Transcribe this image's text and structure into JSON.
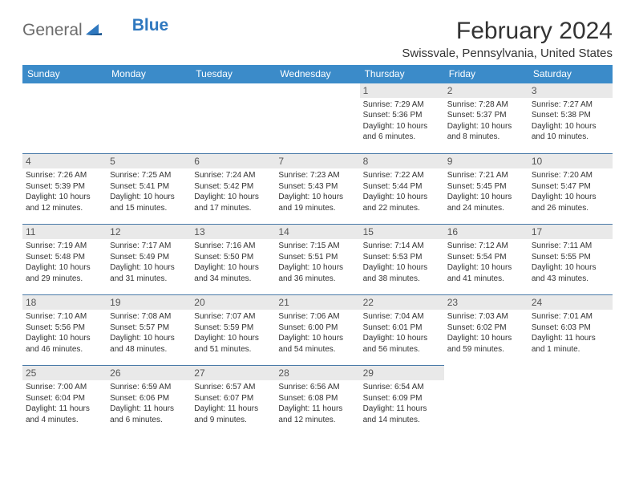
{
  "logo": {
    "part1": "General",
    "part2": "Blue"
  },
  "title": "February 2024",
  "location": "Swissvale, Pennsylvania, United States",
  "colors": {
    "header_bg": "#3b8bc9",
    "header_text": "#ffffff",
    "daynum_bg": "#e9e9e9",
    "border": "#4a7aa8",
    "text": "#333333",
    "logo_gray": "#6b6b6b",
    "logo_blue": "#2f78bf"
  },
  "fonts": {
    "title_size": 30,
    "location_size": 15,
    "header_size": 12,
    "body_size": 10
  },
  "weekdays": [
    "Sunday",
    "Monday",
    "Tuesday",
    "Wednesday",
    "Thursday",
    "Friday",
    "Saturday"
  ],
  "weeks": [
    [
      null,
      null,
      null,
      null,
      {
        "n": "1",
        "sr": "7:29 AM",
        "ss": "5:36 PM",
        "dl": "10 hours and 6 minutes."
      },
      {
        "n": "2",
        "sr": "7:28 AM",
        "ss": "5:37 PM",
        "dl": "10 hours and 8 minutes."
      },
      {
        "n": "3",
        "sr": "7:27 AM",
        "ss": "5:38 PM",
        "dl": "10 hours and 10 minutes."
      }
    ],
    [
      {
        "n": "4",
        "sr": "7:26 AM",
        "ss": "5:39 PM",
        "dl": "10 hours and 12 minutes."
      },
      {
        "n": "5",
        "sr": "7:25 AM",
        "ss": "5:41 PM",
        "dl": "10 hours and 15 minutes."
      },
      {
        "n": "6",
        "sr": "7:24 AM",
        "ss": "5:42 PM",
        "dl": "10 hours and 17 minutes."
      },
      {
        "n": "7",
        "sr": "7:23 AM",
        "ss": "5:43 PM",
        "dl": "10 hours and 19 minutes."
      },
      {
        "n": "8",
        "sr": "7:22 AM",
        "ss": "5:44 PM",
        "dl": "10 hours and 22 minutes."
      },
      {
        "n": "9",
        "sr": "7:21 AM",
        "ss": "5:45 PM",
        "dl": "10 hours and 24 minutes."
      },
      {
        "n": "10",
        "sr": "7:20 AM",
        "ss": "5:47 PM",
        "dl": "10 hours and 26 minutes."
      }
    ],
    [
      {
        "n": "11",
        "sr": "7:19 AM",
        "ss": "5:48 PM",
        "dl": "10 hours and 29 minutes."
      },
      {
        "n": "12",
        "sr": "7:17 AM",
        "ss": "5:49 PM",
        "dl": "10 hours and 31 minutes."
      },
      {
        "n": "13",
        "sr": "7:16 AM",
        "ss": "5:50 PM",
        "dl": "10 hours and 34 minutes."
      },
      {
        "n": "14",
        "sr": "7:15 AM",
        "ss": "5:51 PM",
        "dl": "10 hours and 36 minutes."
      },
      {
        "n": "15",
        "sr": "7:14 AM",
        "ss": "5:53 PM",
        "dl": "10 hours and 38 minutes."
      },
      {
        "n": "16",
        "sr": "7:12 AM",
        "ss": "5:54 PM",
        "dl": "10 hours and 41 minutes."
      },
      {
        "n": "17",
        "sr": "7:11 AM",
        "ss": "5:55 PM",
        "dl": "10 hours and 43 minutes."
      }
    ],
    [
      {
        "n": "18",
        "sr": "7:10 AM",
        "ss": "5:56 PM",
        "dl": "10 hours and 46 minutes."
      },
      {
        "n": "19",
        "sr": "7:08 AM",
        "ss": "5:57 PM",
        "dl": "10 hours and 48 minutes."
      },
      {
        "n": "20",
        "sr": "7:07 AM",
        "ss": "5:59 PM",
        "dl": "10 hours and 51 minutes."
      },
      {
        "n": "21",
        "sr": "7:06 AM",
        "ss": "6:00 PM",
        "dl": "10 hours and 54 minutes."
      },
      {
        "n": "22",
        "sr": "7:04 AM",
        "ss": "6:01 PM",
        "dl": "10 hours and 56 minutes."
      },
      {
        "n": "23",
        "sr": "7:03 AM",
        "ss": "6:02 PM",
        "dl": "10 hours and 59 minutes."
      },
      {
        "n": "24",
        "sr": "7:01 AM",
        "ss": "6:03 PM",
        "dl": "11 hours and 1 minute."
      }
    ],
    [
      {
        "n": "25",
        "sr": "7:00 AM",
        "ss": "6:04 PM",
        "dl": "11 hours and 4 minutes."
      },
      {
        "n": "26",
        "sr": "6:59 AM",
        "ss": "6:06 PM",
        "dl": "11 hours and 6 minutes."
      },
      {
        "n": "27",
        "sr": "6:57 AM",
        "ss": "6:07 PM",
        "dl": "11 hours and 9 minutes."
      },
      {
        "n": "28",
        "sr": "6:56 AM",
        "ss": "6:08 PM",
        "dl": "11 hours and 12 minutes."
      },
      {
        "n": "29",
        "sr": "6:54 AM",
        "ss": "6:09 PM",
        "dl": "11 hours and 14 minutes."
      },
      null,
      null
    ]
  ],
  "labels": {
    "sunrise": "Sunrise:",
    "sunset": "Sunset:",
    "daylight": "Daylight:"
  }
}
